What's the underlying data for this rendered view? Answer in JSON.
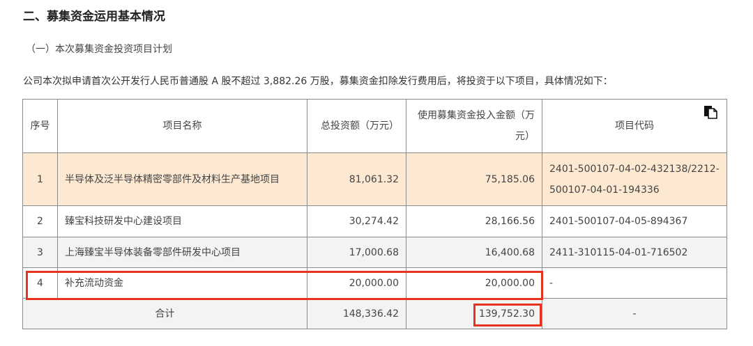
{
  "heading": "二、募集资金运用基本情况",
  "subheading": "（一）本次募集资金投资项目计划",
  "paragraph": "公司本次拟申请首次公开发行人民币普通股 A 股不超过 3,882.26 万股，募集资金扣除发行费用后，将投资于以下项目，具体情况如下：",
  "table": {
    "headers": [
      "序号",
      "项目名称",
      "总投资额（万元）",
      "使用募集资金投入金额（万元）",
      "项目代码"
    ],
    "rows": [
      {
        "no": "1",
        "name": "半导体及泛半导体精密零部件及材料生产基地项目",
        "total": "81,061.32",
        "raised": "75,185.06",
        "code": "2401-500107-04-02-432138/2212-500107-04-01-194336"
      },
      {
        "no": "2",
        "name": "臻宝科技研发中心建设项目",
        "total": "30,274.42",
        "raised": "28,166.56",
        "code": "2401-500107-04-05-894367"
      },
      {
        "no": "3",
        "name": "上海臻宝半导体装备零部件研发中心项目",
        "total": "17,000.68",
        "raised": "16,400.68",
        "code": "2411-310115-04-01-716502"
      },
      {
        "no": "4",
        "name": "补充流动资金",
        "total": "20,000.00",
        "raised": "20,000.00",
        "code": "-"
      }
    ],
    "total": {
      "label": "合计",
      "total": "148,336.42",
      "raised": "139,752.30",
      "code": "-"
    }
  },
  "icons": {
    "copy": "copy-icon"
  },
  "colors": {
    "highlight_row": "#fde9d2",
    "annotation_box": "#e8321e"
  }
}
